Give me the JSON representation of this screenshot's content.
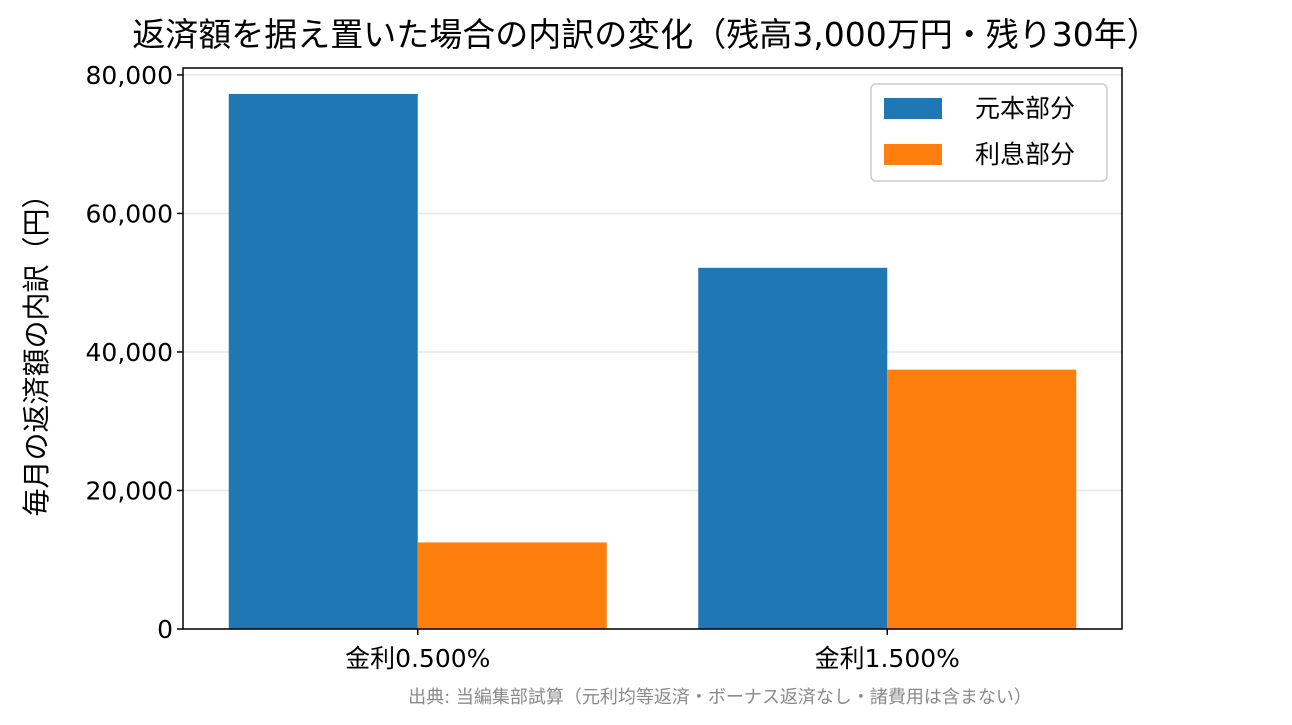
{
  "chart_data": {
    "type": "bar",
    "title": "返済額を据え置いた場合の内訳の変化（残高3,000万円・残り30年）",
    "xlabel": "",
    "ylabel": "毎月の返済額の内訳（円）",
    "categories": [
      "金利0.500%",
      "金利1.500%"
    ],
    "series": [
      {
        "name": "元本部分",
        "values": [
          77250,
          52150
        ],
        "color": "#1f77b4"
      },
      {
        "name": "利息部分",
        "values": [
          12500,
          37450
        ],
        "color": "#ff7f0e"
      }
    ],
    "ylim": [
      0,
      81000
    ],
    "yticks": [
      0,
      20000,
      40000,
      60000,
      80000
    ],
    "ytick_labels": [
      "0",
      "20,000",
      "40,000",
      "60,000",
      "80,000"
    ],
    "grid": "horizontal",
    "legend_position": "upper right"
  },
  "source_note": "出典: 当編集部試算（元利均等返済・ボーナス返済なし・諸費用は含まない）"
}
